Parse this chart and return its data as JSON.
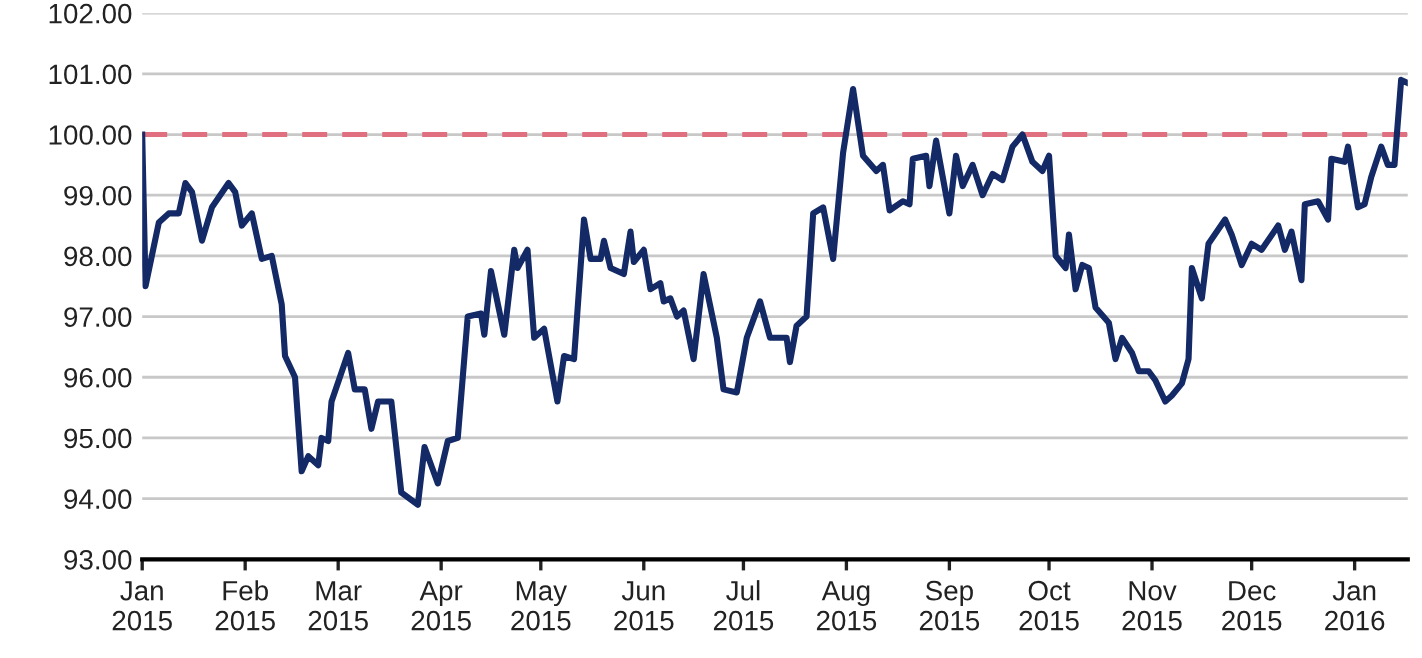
{
  "chart_data": {
    "type": "line",
    "grid": "y",
    "line_style": "solid",
    "xlim": [
      "2015-01-01",
      "2016-01-17"
    ],
    "ylim": [
      93,
      102
    ],
    "yticks": [
      {
        "value": 93,
        "label": "93.00"
      },
      {
        "value": 94,
        "label": "94.00"
      },
      {
        "value": 95,
        "label": "95.00"
      },
      {
        "value": 96,
        "label": "96.00"
      },
      {
        "value": 97,
        "label": "97.00"
      },
      {
        "value": 98,
        "label": "98.00"
      },
      {
        "value": 99,
        "label": "99.00"
      },
      {
        "value": 100,
        "label": "100.00"
      },
      {
        "value": 101,
        "label": "101.00"
      },
      {
        "value": 102,
        "label": "102.00"
      }
    ],
    "xticks": [
      {
        "value": "2015-01-01",
        "label": "Jan\n2015"
      },
      {
        "value": "2015-02-01",
        "label": "Feb\n2015"
      },
      {
        "value": "2015-03-01",
        "label": "Mar\n2015"
      },
      {
        "value": "2015-04-01",
        "label": "Apr\n2015"
      },
      {
        "value": "2015-05-01",
        "label": "May\n2015"
      },
      {
        "value": "2015-06-01",
        "label": "Jun\n2015"
      },
      {
        "value": "2015-07-01",
        "label": "Jul\n2015"
      },
      {
        "value": "2015-08-01",
        "label": "Aug\n2015"
      },
      {
        "value": "2015-09-01",
        "label": "Sep\n2015"
      },
      {
        "value": "2015-10-01",
        "label": "Oct\n2015"
      },
      {
        "value": "2015-11-01",
        "label": "Nov\n2015"
      },
      {
        "value": "2015-12-01",
        "label": "Dec\n2015"
      },
      {
        "value": "2016-01-01",
        "label": "Jan\n2016"
      }
    ],
    "ref_lines": [
      {
        "axis": "y",
        "value": 100,
        "color": "#e07080",
        "line_style": "dashed"
      }
    ],
    "x": [
      "2015-01-01",
      "2015-01-02",
      "2015-01-06",
      "2015-01-09",
      "2015-01-12",
      "2015-01-14",
      "2015-01-16",
      "2015-01-19",
      "2015-01-22",
      "2015-01-27",
      "2015-01-29",
      "2015-01-31",
      "2015-02-03",
      "2015-02-06",
      "2015-02-09",
      "2015-02-12",
      "2015-02-13",
      "2015-02-16",
      "2015-02-18",
      "2015-02-20",
      "2015-02-23",
      "2015-02-24",
      "2015-02-26",
      "2015-02-27",
      "2015-03-04",
      "2015-03-06",
      "2015-03-09",
      "2015-03-11",
      "2015-03-13",
      "2015-03-17",
      "2015-03-20",
      "2015-03-25",
      "2015-03-27",
      "2015-03-31",
      "2015-04-03",
      "2015-04-06",
      "2015-04-09",
      "2015-04-13",
      "2015-04-14",
      "2015-04-16",
      "2015-04-20",
      "2015-04-23",
      "2015-04-24",
      "2015-04-27",
      "2015-04-29",
      "2015-05-02",
      "2015-05-06",
      "2015-05-08",
      "2015-05-11",
      "2015-05-14",
      "2015-05-16",
      "2015-05-19",
      "2015-05-20",
      "2015-05-22",
      "2015-05-26",
      "2015-05-28",
      "2015-05-29",
      "2015-06-01",
      "2015-06-03",
      "2015-06-06",
      "2015-06-07",
      "2015-06-09",
      "2015-06-11",
      "2015-06-13",
      "2015-06-16",
      "2015-06-19",
      "2015-06-23",
      "2015-06-25",
      "2015-06-29",
      "2015-07-02",
      "2015-07-06",
      "2015-07-09",
      "2015-07-14",
      "2015-07-15",
      "2015-07-17",
      "2015-07-20",
      "2015-07-22",
      "2015-07-25",
      "2015-07-28",
      "2015-07-31",
      "2015-08-03",
      "2015-08-06",
      "2015-08-10",
      "2015-08-12",
      "2015-08-14",
      "2015-08-18",
      "2015-08-20",
      "2015-08-21",
      "2015-08-25",
      "2015-08-26",
      "2015-08-28",
      "2015-09-01",
      "2015-09-03",
      "2015-09-05",
      "2015-09-08",
      "2015-09-11",
      "2015-09-14",
      "2015-09-17",
      "2015-09-20",
      "2015-09-23",
      "2015-09-26",
      "2015-09-29",
      "2015-10-01",
      "2015-10-03",
      "2015-10-06",
      "2015-10-07",
      "2015-10-09",
      "2015-10-11",
      "2015-10-13",
      "2015-10-15",
      "2015-10-19",
      "2015-10-21",
      "2015-10-23",
      "2015-10-26",
      "2015-10-28",
      "2015-10-31",
      "2015-11-02",
      "2015-11-05",
      "2015-11-07",
      "2015-11-10",
      "2015-11-12",
      "2015-11-13",
      "2015-11-16",
      "2015-11-18",
      "2015-11-23",
      "2015-11-25",
      "2015-11-28",
      "2015-12-01",
      "2015-12-04",
      "2015-12-09",
      "2015-12-11",
      "2015-12-13",
      "2015-12-16",
      "2015-12-17",
      "2015-12-21",
      "2015-12-24",
      "2015-12-25",
      "2015-12-29",
      "2015-12-30",
      "2016-01-02",
      "2016-01-04",
      "2016-01-06",
      "2016-01-09",
      "2016-01-11",
      "2016-01-13",
      "2016-01-15",
      "2016-01-17"
    ],
    "series": [
      {
        "color": "#142a66",
        "values": [
          100.0,
          97.5,
          98.55,
          98.7,
          98.7,
          99.2,
          99.05,
          98.25,
          98.8,
          99.2,
          99.05,
          98.5,
          98.7,
          97.95,
          98.0,
          97.2,
          96.35,
          96.0,
          94.45,
          94.7,
          94.55,
          95.0,
          94.95,
          95.6,
          96.4,
          95.8,
          95.8,
          95.15,
          95.6,
          95.6,
          94.1,
          93.9,
          94.85,
          94.25,
          94.95,
          95.0,
          97.0,
          97.05,
          96.7,
          97.75,
          96.7,
          98.1,
          97.8,
          98.1,
          96.65,
          96.8,
          95.6,
          96.35,
          96.3,
          98.6,
          97.95,
          97.95,
          98.25,
          97.8,
          97.7,
          98.4,
          97.9,
          98.1,
          97.45,
          97.55,
          97.25,
          97.3,
          97.0,
          97.1,
          96.3,
          97.7,
          96.65,
          95.8,
          95.75,
          96.65,
          97.25,
          96.65,
          96.65,
          96.25,
          96.85,
          97.0,
          98.7,
          98.8,
          97.95,
          99.7,
          100.75,
          99.65,
          99.4,
          99.5,
          98.75,
          98.9,
          98.85,
          99.6,
          99.65,
          99.15,
          99.9,
          98.7,
          99.65,
          99.15,
          99.5,
          99.0,
          99.35,
          99.25,
          99.8,
          100.0,
          99.55,
          99.4,
          99.65,
          98.0,
          97.8,
          98.35,
          97.45,
          97.85,
          97.8,
          97.15,
          96.9,
          96.3,
          96.65,
          96.4,
          96.1,
          96.1,
          95.95,
          95.6,
          95.7,
          95.9,
          96.3,
          97.8,
          97.3,
          98.2,
          98.6,
          98.35,
          97.85,
          98.2,
          98.1,
          98.5,
          98.1,
          98.4,
          97.6,
          98.85,
          98.9,
          98.6,
          99.6,
          99.55,
          99.8,
          98.8,
          98.85,
          99.3,
          99.8,
          99.5,
          99.5,
          100.9,
          100.85
        ]
      }
    ]
  }
}
